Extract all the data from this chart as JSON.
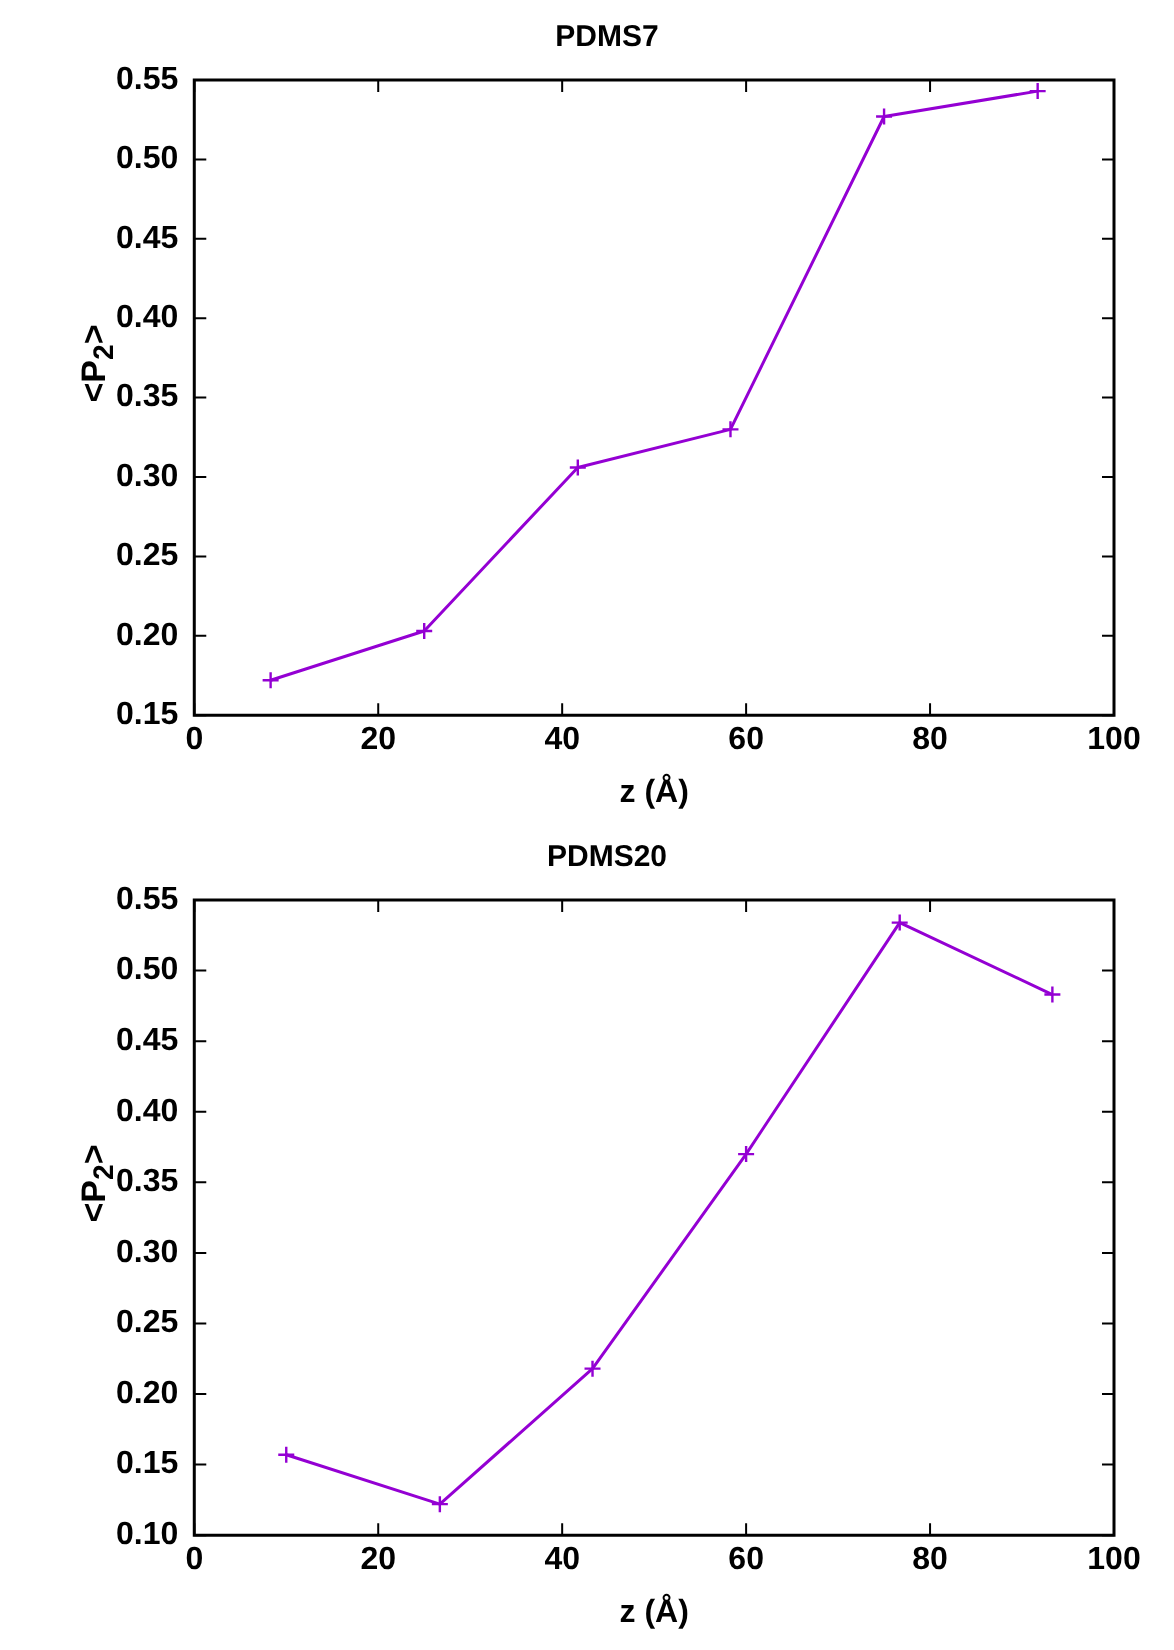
{
  "chart_data": [
    {
      "type": "line",
      "title": "PDMS7",
      "xlabel": "z (Å)",
      "ylabel": "<P$_{2}$>",
      "x": [
        8.3,
        25,
        41.7,
        58.3,
        75,
        91.7
      ],
      "series": [
        {
          "color": "#9400d3",
          "values": [
            0.172,
            0.203,
            0.306,
            0.33,
            0.527,
            0.543
          ]
        }
      ],
      "xlim": [
        0,
        100
      ],
      "xticks": [
        0,
        20,
        40,
        60,
        80,
        100
      ],
      "ylim": [
        0.15,
        0.55
      ],
      "yticks": [
        {
          "value": 0.15,
          "label": "0.15"
        },
        {
          "value": 0.2,
          "label": "0.20"
        },
        {
          "value": 0.25,
          "label": "0.25"
        },
        {
          "value": 0.3,
          "label": "0.30"
        },
        {
          "value": 0.35,
          "label": "0.35"
        },
        {
          "value": 0.4,
          "label": "0.40"
        },
        {
          "value": 0.45,
          "label": "0.45"
        },
        {
          "value": 0.5,
          "label": "0.50"
        },
        {
          "value": 0.55,
          "label": "0.55"
        }
      ],
      "marker": "cross",
      "grid": false,
      "legend": false
    },
    {
      "type": "line",
      "title": "PDMS20",
      "xlabel": "z (Å)",
      "ylabel": "<P$_{2}$>",
      "x": [
        10,
        26.7,
        43.3,
        60,
        76.7,
        93.3
      ],
      "series": [
        {
          "color": "#9400d3",
          "values": [
            0.157,
            0.122,
            0.218,
            0.37,
            0.534,
            0.483
          ]
        }
      ],
      "xlim": [
        0,
        100
      ],
      "xticks": [
        0,
        20,
        40,
        60,
        80,
        100
      ],
      "ylim": [
        0.1,
        0.55
      ],
      "yticks": [
        {
          "value": 0.1,
          "label": "0.10"
        },
        {
          "value": 0.15,
          "label": "0.15"
        },
        {
          "value": 0.2,
          "label": "0.20"
        },
        {
          "value": 0.25,
          "label": "0.25"
        },
        {
          "value": 0.3,
          "label": "0.30"
        },
        {
          "value": 0.35,
          "label": "0.35"
        },
        {
          "value": 0.4,
          "label": "0.40"
        },
        {
          "value": 0.45,
          "label": "0.45"
        },
        {
          "value": 0.5,
          "label": "0.50"
        },
        {
          "value": 0.55,
          "label": "0.55"
        }
      ],
      "marker": "cross",
      "grid": false,
      "legend": false
    }
  ]
}
